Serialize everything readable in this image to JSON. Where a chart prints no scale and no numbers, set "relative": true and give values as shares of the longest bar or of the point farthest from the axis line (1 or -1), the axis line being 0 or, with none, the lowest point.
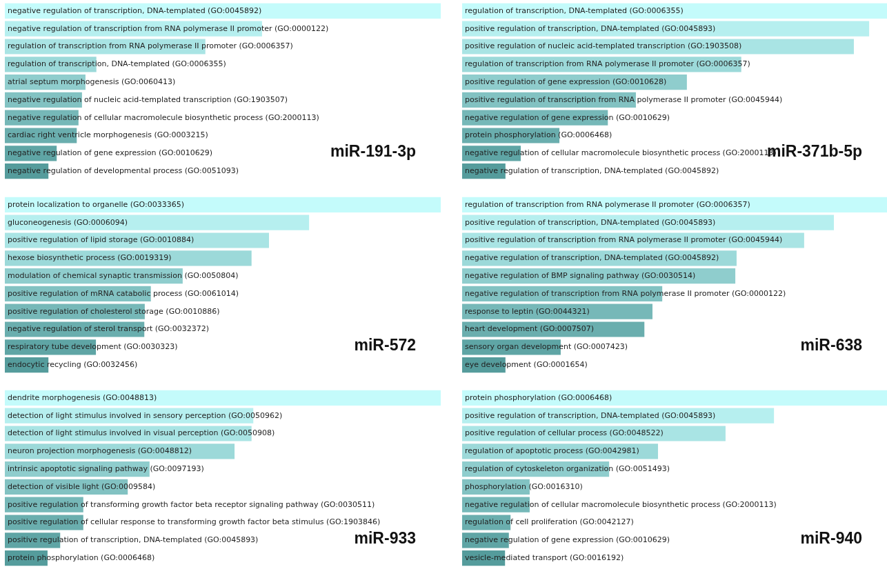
{
  "chart_data": [
    {
      "type": "bar",
      "orientation": "horizontal",
      "relative": true,
      "title": "miR-191-3p",
      "categories": [
        "negative regulation of transcription, DNA-templated (GO:0045892)",
        "negative regulation of transcription from RNA polymerase II promoter (GO:0000122)",
        "regulation of transcription from RNA polymerase II promoter (GO:0006357)",
        "regulation of transcription, DNA-templated (GO:0006355)",
        "atrial septum morphogenesis (GO:0060413)",
        "negative regulation of nucleic acid-templated transcription (GO:1903507)",
        "negative regulation of cellular macromolecule biosynthetic process (GO:2000113)",
        "cardiac right ventricle morphogenesis (GO:0003215)",
        "negative regulation of gene expression (GO:0010629)",
        "negative regulation of developmental process (GO:0051093)"
      ],
      "values": [
        1,
        0.59,
        0.46,
        0.21,
        0.185,
        0.177,
        0.169,
        0.165,
        0.119,
        0.1
      ],
      "colors": [
        "#c4fbfb",
        "#b6efef",
        "#a9e4e4",
        "#9cd9d9",
        "#8fcdcd",
        "#82c2c2",
        "#76b8b8",
        "#6aaeae",
        "#5fa5a5",
        "#559c9c"
      ]
    },
    {
      "type": "bar",
      "orientation": "horizontal",
      "relative": true,
      "title": "miR-371b-5p",
      "categories": [
        "regulation of transcription, DNA-templated (GO:0006355)",
        "positive regulation of transcription, DNA-templated (GO:0045893)",
        "positive regulation of nucleic acid-templated transcription (GO:1903508)",
        "regulation of transcription from RNA polymerase II promoter (GO:0006357)",
        "positive regulation of gene expression (GO:0010628)",
        "positive regulation of transcription from RNA polymerase II promoter (GO:0045944)",
        "negative regulation of gene expression (GO:0010629)",
        "protein phosphorylation (GO:0006468)",
        "negative regulation of cellular macromolecule biosynthetic process (GO:2000113)",
        "negative regulation of transcription, DNA-templated (GO:0045892)"
      ],
      "values": [
        1,
        0.958,
        0.922,
        0.657,
        0.529,
        0.409,
        0.343,
        0.229,
        0.138,
        0.102
      ],
      "colors": [
        "#c4fbfb",
        "#b6efef",
        "#a9e4e4",
        "#9cd9d9",
        "#8fcdcd",
        "#82c2c2",
        "#76b8b8",
        "#6aaeae",
        "#5fa5a5",
        "#559c9c"
      ]
    },
    {
      "type": "bar",
      "orientation": "horizontal",
      "relative": true,
      "title": "miR-572",
      "categories": [
        "protein localization to organelle (GO:0033365)",
        "gluconeogenesis (GO:0006094)",
        "positive regulation of lipid storage (GO:0010884)",
        "hexose biosynthetic process (GO:0019319)",
        "modulation of chemical synaptic transmission (GO:0050804)",
        "positive regulation of mRNA catabolic process (GO:0061014)",
        "positive regulation of cholesterol storage (GO:0010886)",
        "negative regulation of sterol transport (GO:0032372)",
        "respiratory tube development (GO:0030323)",
        "endocytic recycling (GO:0032456)"
      ],
      "values": [
        1,
        0.698,
        0.606,
        0.566,
        0.408,
        0.335,
        0.321,
        0.32,
        0.209,
        0.1
      ],
      "colors": [
        "#c4fbfb",
        "#b6efef",
        "#a9e4e4",
        "#9cd9d9",
        "#8fcdcd",
        "#82c2c2",
        "#76b8b8",
        "#6aaeae",
        "#5fa5a5",
        "#559c9c"
      ]
    },
    {
      "type": "bar",
      "orientation": "horizontal",
      "relative": true,
      "title": "miR-638",
      "categories": [
        "regulation of transcription from RNA polymerase II promoter (GO:0006357)",
        "positive regulation of transcription, DNA-templated (GO:0045893)",
        "positive regulation of transcription from RNA polymerase II promoter (GO:0045944)",
        "negative regulation of transcription, DNA-templated (GO:0045892)",
        "negative regulation of BMP signaling pathway (GO:0030514)",
        "negative regulation of transcription from RNA polymerase II promoter (GO:0000122)",
        "response to leptin (GO:0044321)",
        "heart development (GO:0007507)",
        "sensory organ development (GO:0007423)",
        "eye development (GO:0001654)"
      ],
      "values": [
        1,
        0.875,
        0.805,
        0.646,
        0.643,
        0.471,
        0.448,
        0.429,
        0.232,
        0.102
      ],
      "colors": [
        "#c4fbfb",
        "#b6efef",
        "#a9e4e4",
        "#9cd9d9",
        "#8fcdcd",
        "#82c2c2",
        "#76b8b8",
        "#6aaeae",
        "#5fa5a5",
        "#559c9c"
      ]
    },
    {
      "type": "bar",
      "orientation": "horizontal",
      "relative": true,
      "title": "miR-933",
      "categories": [
        "dendrite morphogenesis (GO:0048813)",
        "detection of light stimulus involved in sensory perception (GO:0050962)",
        "detection of light stimulus involved in visual perception (GO:0050908)",
        "neuron projection morphogenesis (GO:0048812)",
        "intrinsic apoptotic signaling pathway (GO:0097193)",
        "detection of visible light (GO:0009584)",
        "positive regulation of transforming growth factor beta receptor signaling pathway (GO:0030511)",
        "positive regulation of cellular response to transforming growth factor beta stimulus (GO:1903846)",
        "positive regulation of transcription, DNA-templated (GO:0045893)",
        "protein phosphorylation (GO:0006468)"
      ],
      "values": [
        1,
        0.57,
        0.566,
        0.527,
        0.332,
        0.282,
        0.18,
        0.18,
        0.127,
        0.098
      ],
      "colors": [
        "#c4fbfb",
        "#b6efef",
        "#a9e4e4",
        "#9cd9d9",
        "#8fcdcd",
        "#82c2c2",
        "#76b8b8",
        "#6aaeae",
        "#5fa5a5",
        "#559c9c"
      ]
    },
    {
      "type": "bar",
      "orientation": "horizontal",
      "relative": true,
      "title": "miR-940",
      "categories": [
        "protein phosphorylation (GO:0006468)",
        "positive regulation of transcription, DNA-templated (GO:0045893)",
        "positive regulation of cellular process (GO:0048522)",
        "regulation of apoptotic process (GO:0042981)",
        "regulation of cytoskeleton organization (GO:0051493)",
        "phosphorylation (GO:0016310)",
        "negative regulation of cellular macromolecule biosynthetic process (GO:2000113)",
        "regulation of cell proliferation (GO:0042127)",
        "negative regulation of gene expression (GO:0010629)",
        "vesicle-mediated transport (GO:0016192)"
      ],
      "values": [
        1,
        0.734,
        0.62,
        0.461,
        0.346,
        0.159,
        0.159,
        0.114,
        0.11,
        0.101
      ],
      "colors": [
        "#c4fbfb",
        "#b6efef",
        "#a9e4e4",
        "#9cd9d9",
        "#8fcdcd",
        "#82c2c2",
        "#76b8b8",
        "#6aaeae",
        "#5fa5a5",
        "#559c9c"
      ]
    }
  ]
}
